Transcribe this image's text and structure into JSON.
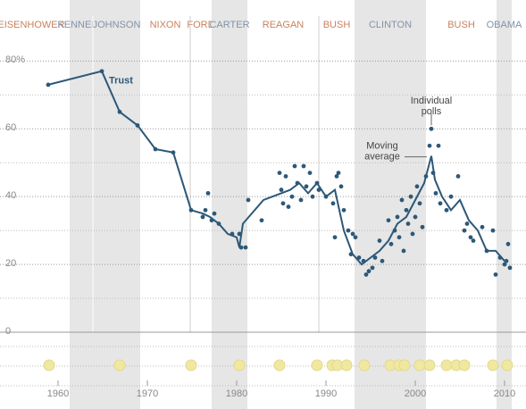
{
  "chart_data": {
    "type": "line",
    "presidents": [
      {
        "name": "EISENHOWER",
        "start": 1953,
        "end": 1961,
        "shaded": false
      },
      {
        "name": "KENNEDY",
        "start": 1961.3,
        "end": 1963.9,
        "shaded": true
      },
      {
        "name": "JOHNSON",
        "start": 1963.9,
        "end": 1969.2,
        "shaded": true
      },
      {
        "name": "NIXON",
        "start": 1969.2,
        "end": 1974.8,
        "shaded": false
      },
      {
        "name": "FORD",
        "start": 1974.8,
        "end": 1977.2,
        "shaded": false
      },
      {
        "name": "CARTER",
        "start": 1977.2,
        "end": 1981.2,
        "shaded": true
      },
      {
        "name": "REAGAN",
        "start": 1981.2,
        "end": 1989.2,
        "shaded": false
      },
      {
        "name": "BUSH",
        "start": 1989.2,
        "end": 1993.2,
        "shaded": false
      },
      {
        "name": "CLINTON",
        "start": 1993.2,
        "end": 2001.2,
        "shaded": true
      },
      {
        "name": "BUSH",
        "start": 2001.2,
        "end": 2009.1,
        "shaded": false
      },
      {
        "name": "OBAMA",
        "start": 2009.1,
        "end": 2010.8,
        "shaded": true
      }
    ],
    "series": [
      {
        "name": "Trust",
        "color": "#2d5878",
        "x": [
          1958.9,
          1964.9,
          1966.9,
          1968.9,
          1970.9,
          1972.9,
          1974.9,
          1976.2,
          1977,
          1978,
          1979,
          1980,
          1980.3,
          1980.7,
          1983,
          1986,
          1987,
          1988,
          1989,
          1990,
          1991,
          1992,
          1993,
          1994,
          1995,
          1996,
          1997,
          1998,
          1999,
          2000,
          2001,
          2001.8,
          2002.2,
          2003,
          2004,
          2005,
          2006,
          2007,
          2008,
          2009,
          2010
        ],
        "values": [
          73,
          77,
          65,
          61,
          54,
          53,
          36,
          35,
          34,
          32,
          29,
          28,
          25,
          32,
          39,
          42,
          44,
          41,
          44,
          40,
          42,
          30,
          23,
          20,
          22,
          24,
          27,
          32,
          34,
          39,
          44,
          52,
          45,
          40,
          36,
          39,
          33,
          30,
          24,
          24,
          21
        ]
      }
    ],
    "polls": {
      "color": "#2d5878",
      "x": [
        1958.9,
        1964.9,
        1966.9,
        1968.9,
        1970.9,
        1972.9,
        1974.9,
        1976.2,
        1976.5,
        1976.8,
        1977.2,
        1977.5,
        1978,
        1979.5,
        1980.3,
        1980.5,
        1981,
        1981.3,
        1982.8,
        1984.8,
        1985,
        1985.2,
        1985.5,
        1985.8,
        1986.2,
        1986.5,
        1986.8,
        1987.2,
        1987.5,
        1987.8,
        1988.2,
        1988.5,
        1989,
        1989.2,
        1990,
        1990.8,
        1991,
        1991.2,
        1991.4,
        1991.7,
        1992,
        1992.5,
        1992.8,
        1993,
        1993.3,
        1993.7,
        1994.2,
        1994.5,
        1994.8,
        1995.2,
        1995.5,
        1996,
        1996.3,
        1997,
        1997.3,
        1997.7,
        1998,
        1998.2,
        1998.5,
        1998.7,
        1999,
        1999.2,
        1999.5,
        1999.7,
        2000,
        2000.2,
        2000.5,
        2000.8,
        2001.2,
        2001.6,
        2001.8,
        2002,
        2002.3,
        2002.6,
        2002.8,
        2003.5,
        2004,
        2004.8,
        2005.5,
        2005.8,
        2006.2,
        2006.5,
        2007.5,
        2008,
        2008.7,
        2009,
        2009.5,
        2010,
        2010.2,
        2010.4,
        2010.6
      ],
      "values": [
        73,
        77,
        65,
        61,
        54,
        53,
        36,
        34,
        36,
        41,
        33,
        35,
        32,
        29,
        29,
        25,
        25,
        39,
        33,
        47,
        42,
        38,
        46,
        37,
        40,
        49,
        44,
        39,
        49,
        43,
        47,
        40,
        44,
        42,
        40,
        38,
        28,
        46,
        47,
        43,
        36,
        30,
        23,
        29,
        28,
        22,
        21,
        17,
        18,
        19,
        22,
        27,
        21,
        33,
        26,
        30,
        34,
        28,
        39,
        24,
        36,
        32,
        40,
        29,
        34,
        43,
        38,
        31,
        46,
        55,
        60,
        47,
        41,
        55,
        38,
        36,
        40,
        46,
        30,
        32,
        28,
        27,
        31,
        24,
        30,
        17,
        22,
        20,
        21,
        26,
        19
      ]
    },
    "events": {
      "color": "#f0e8a0",
      "x": [
        1959,
        1966.9,
        1974.9,
        1980.3,
        1984.8,
        1989,
        1990.7,
        1991.3,
        1992.3,
        1994.3,
        1997.2,
        1998.2,
        1998.8,
        2000.5,
        2001.6,
        2003.5,
        2004.6,
        2005.5,
        2008.7,
        2010.3
      ]
    },
    "annotations": [
      {
        "text": [
          "Individual",
          "polls"
        ],
        "x": 2001.8,
        "y": 60
      },
      {
        "text": [
          "Moving",
          "average"
        ],
        "x": 2001.6,
        "y": 52
      }
    ],
    "xlim": [
      1953.5,
      2012.4
    ],
    "xticks": [
      1960,
      1970,
      1980,
      1990,
      2000,
      2010
    ],
    "ylim": [
      0,
      98
    ],
    "yticks": [
      0,
      20,
      40,
      60,
      {
        "value": 80,
        "label": "80%"
      }
    ],
    "minor_yticks": [
      10,
      30,
      50,
      70
    ],
    "grid": true
  }
}
